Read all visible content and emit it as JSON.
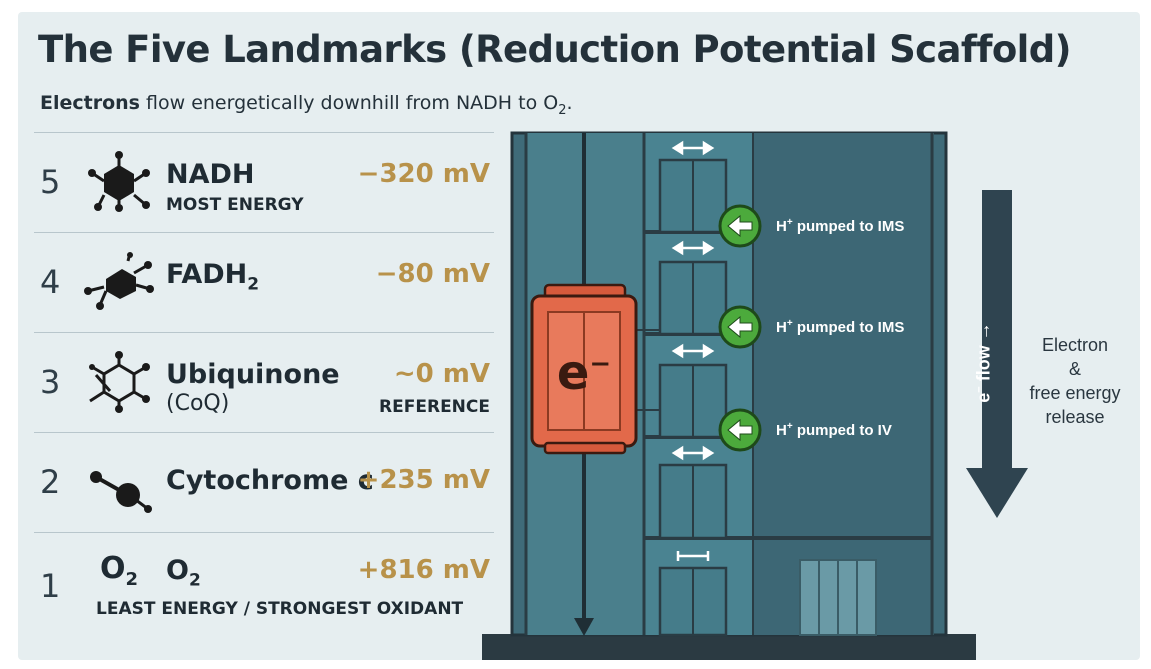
{
  "title": "The Five Landmarks (Reduction Potential Scaffold)",
  "subtitle": {
    "bold": "Electrons",
    "rest": "flow energetically downhill from NADH to O",
    "sub": "2",
    "end": "."
  },
  "landmarks": [
    {
      "rank": "5",
      "name": "NADH",
      "name_sub": "",
      "sub": "MOST ENERGY",
      "potential": "−320 mV",
      "note": "",
      "icon": "nadh-molecule-icon"
    },
    {
      "rank": "4",
      "name": "FADH",
      "name_sub": "2",
      "sub": "",
      "potential": "−80 mV",
      "note": "",
      "icon": "fadh2-molecule-icon"
    },
    {
      "rank": "3",
      "name": "Ubiquinone",
      "name_sub": "",
      "sub": "(CoQ)",
      "potential": "~0 mV",
      "note": "REFERENCE",
      "icon": "ubiquinone-molecule-icon"
    },
    {
      "rank": "2",
      "name": "Cytochrome c",
      "name_sub": "",
      "sub": "",
      "potential": "+235 mV",
      "note": "",
      "icon": "cytochrome-c-icon"
    },
    {
      "rank": "1",
      "name": "O",
      "name_sub": "2",
      "symbol": "O",
      "symbol_sub": "2",
      "sub": "LEAST ENERGY / STRONGEST OXIDANT",
      "potential": "+816 mV",
      "note": "",
      "icon": "oxygen-symbol-icon"
    }
  ],
  "diagram": {
    "elevator_label": "e",
    "elevator_label_sup": "−",
    "pumps": [
      {
        "prefix": "H",
        "sup": "+",
        "text": " pumped to IMS"
      },
      {
        "prefix": "H",
        "sup": "+",
        "text": " pumped to IMS"
      },
      {
        "prefix": "H",
        "sup": "+",
        "text": " pumped to IV"
      }
    ],
    "flow_label": {
      "e": "e",
      "sup": "−",
      "rest": " flow →"
    },
    "release_label": [
      "Electron",
      "&",
      "free energy",
      "release"
    ]
  },
  "colors": {
    "panel": "#e6eef0",
    "building": "#3e6a78",
    "elevator": "#e2694a",
    "pump": "#4caa3c",
    "potential": "#b8924a",
    "arrow": "#2f4450"
  }
}
